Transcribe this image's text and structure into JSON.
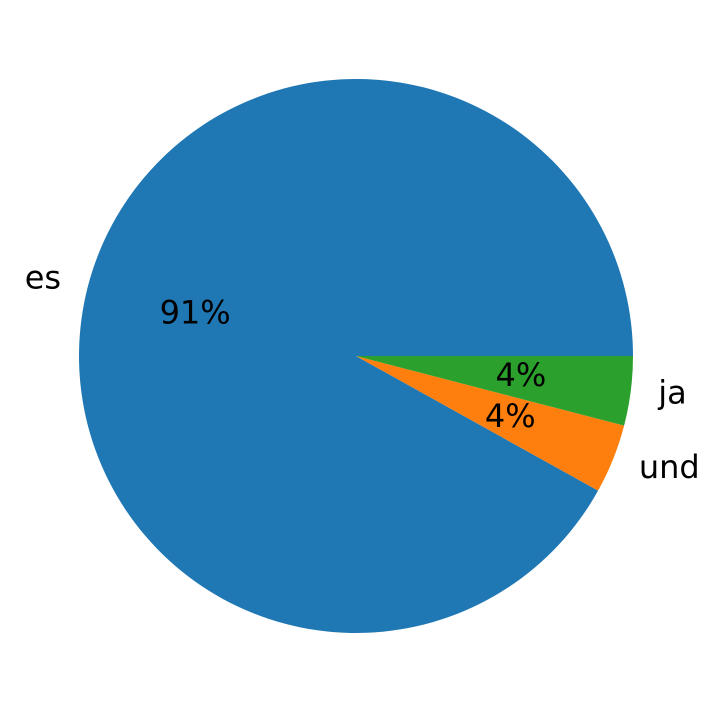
{
  "chart_data": {
    "type": "pie",
    "categories": [
      "es",
      "und",
      "ja"
    ],
    "values": [
      91,
      4,
      4
    ],
    "value_labels": [
      "91%",
      "4%",
      "4%"
    ],
    "colors": [
      "#1f77b4",
      "#ff7f0e",
      "#2ca02c"
    ]
  }
}
